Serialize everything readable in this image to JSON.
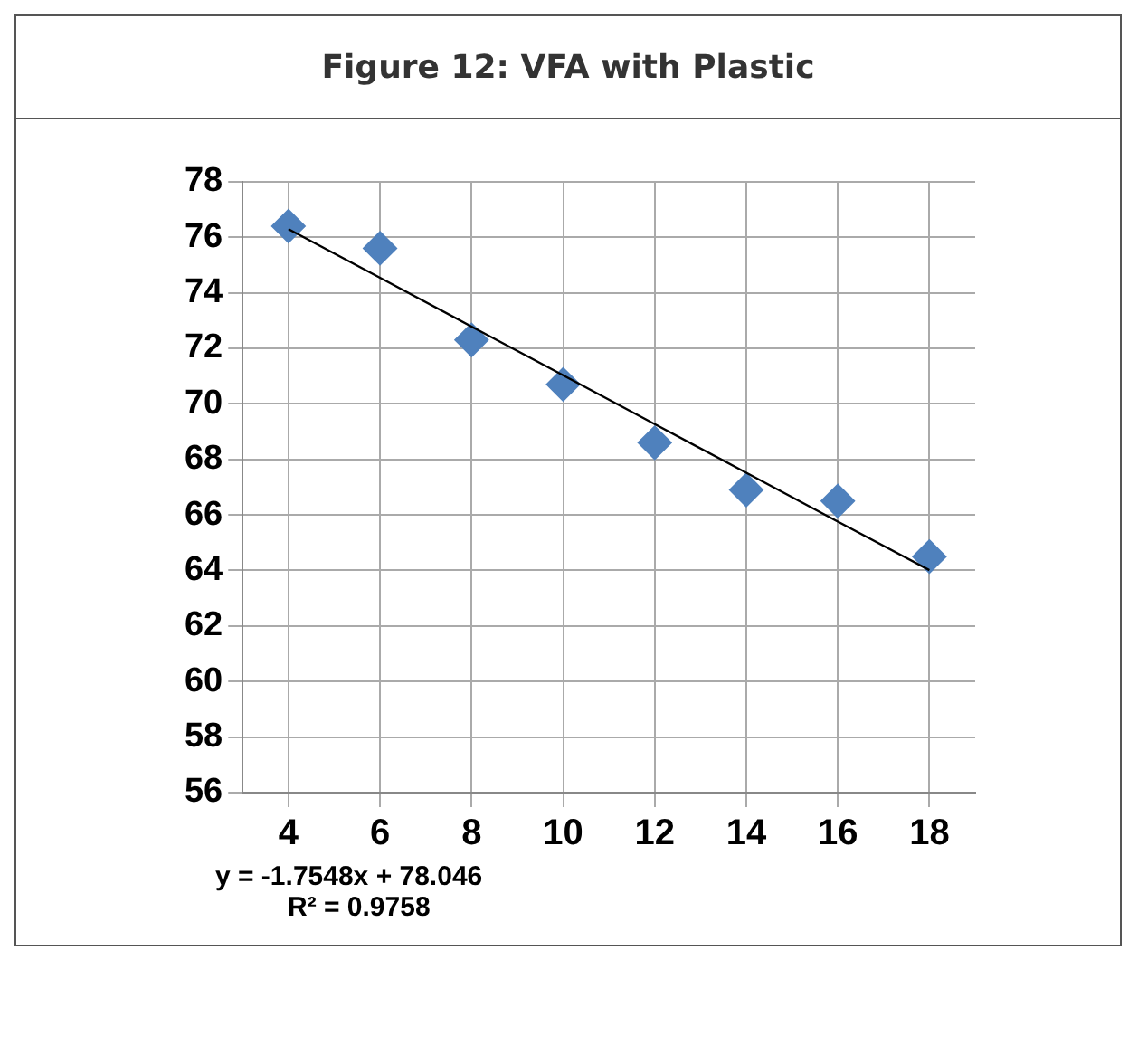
{
  "chart_data": {
    "type": "scatter",
    "title": "Figure 12: VFA with Plastic",
    "categories": [
      "4",
      "6",
      "8",
      "10",
      "12",
      "14",
      "16",
      "18"
    ],
    "series": [
      {
        "type": "scatter",
        "color": "#4f81bd",
        "marker": "diamond",
        "values": [
          76.4,
          75.6,
          72.3,
          70.7,
          68.6,
          66.9,
          66.5,
          64.5
        ]
      },
      {
        "type": "line",
        "color": "#000000",
        "marker": "none",
        "values": [
          76.29,
          74.54,
          72.78,
          71.03,
          69.27,
          67.52,
          65.76,
          64.01
        ]
      }
    ],
    "ylim": [
      56,
      78
    ],
    "yticks": [
      56,
      58,
      60,
      62,
      64,
      66,
      68,
      70,
      72,
      74,
      76,
      78
    ],
    "grid": true,
    "legend": false,
    "annotations": [
      "y = -1.7548x + 78.046",
      "R² = 0.9758"
    ]
  }
}
